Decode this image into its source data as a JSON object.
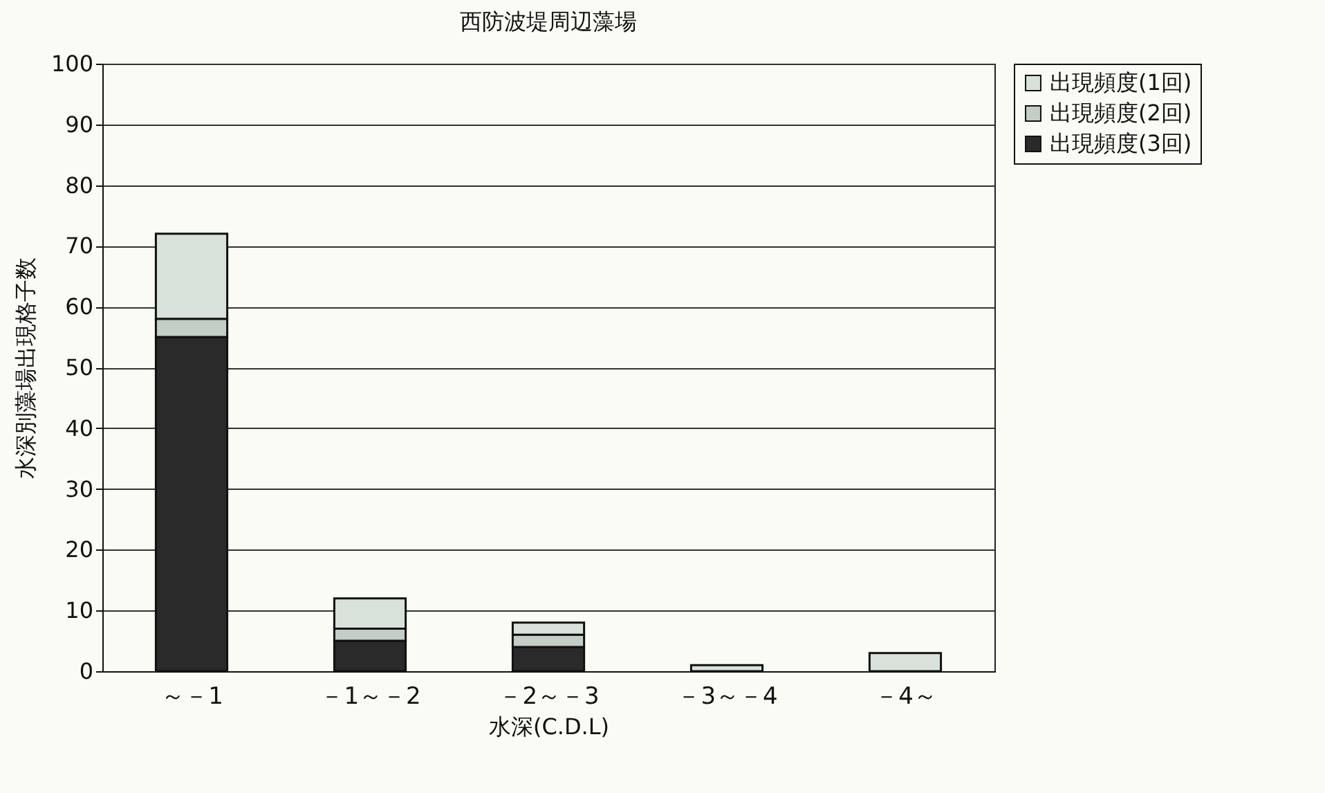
{
  "chart_data": {
    "type": "bar",
    "title": "西防波堤周辺藻場",
    "xlabel": "水深(C.D.L)",
    "ylabel": "水深別藻場出現格子数",
    "categories": [
      "～－1",
      "－1～－2",
      "－2～－3",
      "－3～－4",
      "－4～"
    ],
    "stacked": true,
    "ylim": [
      0,
      100
    ],
    "yticks": [
      0,
      10,
      20,
      30,
      40,
      50,
      60,
      70,
      80,
      90,
      100
    ],
    "grid": "y",
    "legend": "right",
    "series": [
      {
        "name": "出現頻度(3回)",
        "color": "#2a2a2a",
        "values": [
          55,
          5,
          4,
          0,
          0
        ]
      },
      {
        "name": "出現頻度(2回)",
        "color": "#c3cec6",
        "values": [
          3,
          2,
          2,
          0,
          0
        ]
      },
      {
        "name": "出現頻度(1回)",
        "color": "#d8e2da",
        "values": [
          14,
          5,
          2,
          1,
          3
        ]
      }
    ]
  }
}
